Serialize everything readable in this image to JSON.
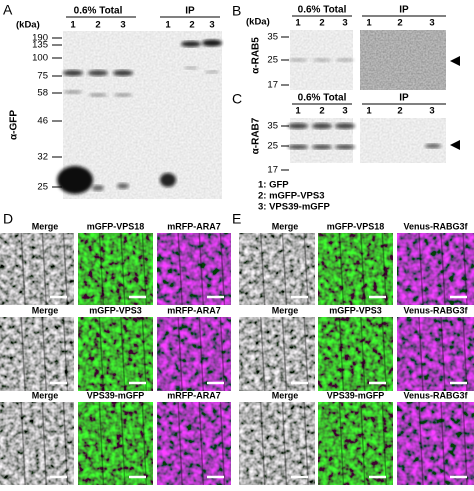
{
  "panel_a": {
    "label": "A",
    "kda": "(kDa)",
    "total": "0.6% Total",
    "ip": "IP",
    "total_lanes": [
      "1",
      "2",
      "3"
    ],
    "ip_lanes": [
      "1",
      "2",
      "3"
    ],
    "markers": [
      "190",
      "135",
      "100",
      "75",
      "58",
      "46",
      "32",
      "25"
    ],
    "antibody": "α-GFP"
  },
  "panel_b": {
    "label": "B",
    "kda": "(kDa)",
    "total": "0.6% Total",
    "ip": "IP",
    "total_lanes": [
      "1",
      "2",
      "3"
    ],
    "ip_lanes": [
      "1",
      "2",
      "3"
    ],
    "markers": [
      "35",
      "25",
      "17"
    ],
    "antibody": "α-RAB5"
  },
  "panel_c": {
    "label": "C",
    "total": "0.6% Total",
    "ip": "IP",
    "total_lanes": [
      "1",
      "2",
      "3"
    ],
    "ip_lanes": [
      "1",
      "2",
      "3"
    ],
    "markers": [
      "35",
      "25",
      "17"
    ],
    "antibody": "α-RAB7"
  },
  "legend": [
    "1: GFP",
    "2: mGFP-VPS3",
    "3: VPS39-mGFP"
  ],
  "panel_d": {
    "label": "D",
    "rows": [
      [
        "Merge",
        "mGFP-VPS18",
        "mRFP-ARA7"
      ],
      [
        "Merge",
        "mGFP-VPS3",
        "mRFP-ARA7"
      ],
      [
        "Merge",
        "VPS39-mGFP",
        "mRFP-ARA7"
      ]
    ]
  },
  "panel_e": {
    "label": "E",
    "rows": [
      [
        "Merge",
        "mGFP-VPS18",
        "Venus-RABG3f"
      ],
      [
        "Merge",
        "mGFP-VPS3",
        "Venus-RABG3f"
      ],
      [
        "Merge",
        "VPS39-mGFP",
        "Venus-RABG3f"
      ]
    ]
  }
}
